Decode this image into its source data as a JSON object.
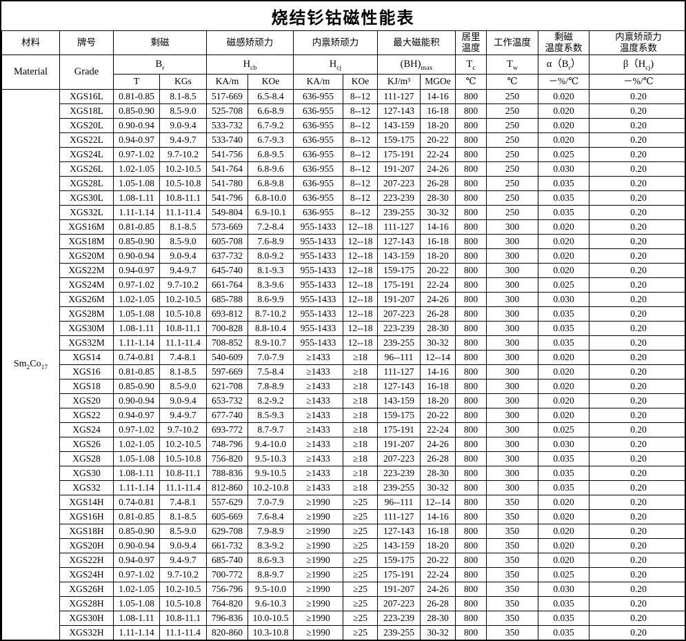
{
  "page": {
    "title": "烧结钐钴磁性能表"
  },
  "header": {
    "material_cn": "材料",
    "material_en": "Material",
    "grade_cn": "牌号",
    "grade_en": "Grade",
    "remanence_cn": "剩磁",
    "coercivity_b_cn": "磁感矫顽力",
    "coercivity_i_cn": "内禀矫顽力",
    "energy_product_cn": "最大磁能积",
    "curie_cn_line1": "居里",
    "curie_cn_line2": "温度",
    "working_cn": "工作温度",
    "alpha_cn_line1": "剩磁",
    "alpha_cn_line2": "温度系数",
    "beta_cn_line1": "内禀矫顽力",
    "beta_cn_line2": "温度系数",
    "sym": {
      "br": {
        "base": "B",
        "sub": "r"
      },
      "hcb": {
        "base": "H",
        "sub": "cb"
      },
      "hcj": {
        "base": "H",
        "sub": "cj"
      },
      "bhmax": {
        "base": "(BH)",
        "sub": "max"
      },
      "tc": {
        "base": "T",
        "sub": "c"
      },
      "tw": {
        "base": "T",
        "sub": "w"
      },
      "alpha": {
        "pre": "α（B",
        "sub": "r",
        "post": "）"
      },
      "beta": {
        "pre": "β（H",
        "sub": "cj",
        "post": ")"
      }
    },
    "units": {
      "t": "T",
      "kgs": "KGs",
      "kam": "KA/m",
      "koe": "KOe",
      "kjm3": "KJ/m³",
      "mgoe": "MGOe",
      "celsius": "℃",
      "pct_per_c": "－%/℃"
    }
  },
  "material": {
    "p0": "Sm",
    "s0": "2",
    "p1": "Co",
    "s1": "17"
  },
  "columns": [
    "grade",
    "br_t",
    "br_kgs",
    "hcb_kam",
    "hcb_koe",
    "hcj_kam",
    "hcj_koe",
    "bh_kjm3",
    "bh_mgoe",
    "tc",
    "tw",
    "alpha",
    "beta"
  ],
  "rows": [
    [
      "XGS16L",
      "0.81-0.85",
      "8.1-8.5",
      "517-669",
      "6.5-8.4",
      "636-955",
      "8--12",
      "111-127",
      "14-16",
      "800",
      "250",
      "0.020",
      "0.20"
    ],
    [
      "XGS18L",
      "0.85-0.90",
      "8.5-9.0",
      "525-708",
      "6.6-8.9",
      "636-955",
      "8--12",
      "127-143",
      "16-18",
      "800",
      "250",
      "0.020",
      "0.20"
    ],
    [
      "XGS20L",
      "0.90-0.94",
      "9.0-9.4",
      "533-732",
      "6.7-9.2",
      "636-955",
      "8--12",
      "143-159",
      "18-20",
      "800",
      "250",
      "0.020",
      "0.20"
    ],
    [
      "XGS22L",
      "0.94-0.97",
      "9.4-9.7",
      "533-740",
      "6.7-9.3",
      "636-955",
      "8--12",
      "159-175",
      "20-22",
      "800",
      "250",
      "0.020",
      "0.20"
    ],
    [
      "XGS24L",
      "0.97-1.02",
      "9.7-10.2",
      "541-756",
      "6.8-9.5",
      "636-955",
      "8--12",
      "175-191",
      "22-24",
      "800",
      "250",
      "0.025",
      "0.20"
    ],
    [
      "XGS26L",
      "1.02-1.05",
      "10.2-10.5",
      "541-764",
      "6.8-9.6",
      "636-955",
      "8--12",
      "191-207",
      "24-26",
      "800",
      "250",
      "0.030",
      "0.20"
    ],
    [
      "XGS28L",
      "1.05-1.08",
      "10.5-10.8",
      "541-780",
      "6.8-9.8",
      "636-955",
      "8--12",
      "207-223",
      "26-28",
      "800",
      "250",
      "0.035",
      "0.20"
    ],
    [
      "XGS30L",
      "1.08-1.11",
      "10.8-11.1",
      "541-796",
      "6.8-10.0",
      "636-955",
      "8--12",
      "223-239",
      "28-30",
      "800",
      "250",
      "0.035",
      "0.20"
    ],
    [
      "XGS32L",
      "1.11-1.14",
      "11.1-11.4",
      "549-804",
      "6.9-10.1",
      "636-955",
      "8--12",
      "239-255",
      "30-32",
      "800",
      "250",
      "0.035",
      "0.20"
    ],
    [
      "XGS16M",
      "0.81-0.85",
      "8.1-8.5",
      "573-669",
      "7.2-8.4",
      "955-1433",
      "12--18",
      "111-127",
      "14-16",
      "800",
      "300",
      "0.020",
      "0.20"
    ],
    [
      "XGS18M",
      "0.85-0.90",
      "8.5-9.0",
      "605-708",
      "7.6-8.9",
      "955-1433",
      "12--18",
      "127-143",
      "16-18",
      "800",
      "300",
      "0.020",
      "0.20"
    ],
    [
      "XGS20M",
      "0.90-0.94",
      "9.0-9.4",
      "637-732",
      "8.0-9.2",
      "955-1433",
      "12--18",
      "143-159",
      "18-20",
      "800",
      "300",
      "0.020",
      "0.20"
    ],
    [
      "XGS22M",
      "0.94-0.97",
      "9.4-9.7",
      "645-740",
      "8.1-9.3",
      "955-1433",
      "12--18",
      "159-175",
      "20-22",
      "800",
      "300",
      "0.020",
      "0.20"
    ],
    [
      "XGS24M",
      "0.97-1.02",
      "9.7-10.2",
      "661-764",
      "8.3-9.6",
      "955-1433",
      "12--18",
      "175-191",
      "22-24",
      "800",
      "300",
      "0.025",
      "0.20"
    ],
    [
      "XGS26M",
      "1.02-1.05",
      "10.2-10.5",
      "685-788",
      "8.6-9.9",
      "955-1433",
      "12--18",
      "191-207",
      "24-26",
      "800",
      "300",
      "0.030",
      "0.20"
    ],
    [
      "XGS28M",
      "1.05-1.08",
      "10.5-10.8",
      "693-812",
      "8.7-10.2",
      "955-1433",
      "12--18",
      "207-223",
      "26-28",
      "800",
      "300",
      "0.035",
      "0.20"
    ],
    [
      "XGS30M",
      "1.08-1.11",
      "10.8-11.1",
      "700-828",
      "8.8-10.4",
      "955-1433",
      "12--18",
      "223-239",
      "28-30",
      "800",
      "300",
      "0.035",
      "0.20"
    ],
    [
      "XGS32M",
      "1.11-1.14",
      "11.1-11.4",
      "708-852",
      "8.9-10.7",
      "955-1433",
      "12--18",
      "239-255",
      "30-32",
      "800",
      "300",
      "0.035",
      "0.20"
    ],
    [
      "XGS14",
      "0.74-0.81",
      "7.4-8.1",
      "540-609",
      "7.0-7.9",
      "≥1433",
      "≥18",
      "96--111",
      "12--14",
      "800",
      "300",
      "0.020",
      "0.20"
    ],
    [
      "XGS16",
      "0.81-0.85",
      "8.1-8.5",
      "597-669",
      "7.5-8.4",
      "≥1433",
      "≥18",
      "111-127",
      "14-16",
      "800",
      "300",
      "0.020",
      "0.20"
    ],
    [
      "XGS18",
      "0.85-0.90",
      "8.5-9.0",
      "621-708",
      "7.8-8.9",
      "≥1433",
      "≥18",
      "127-143",
      "16-18",
      "800",
      "300",
      "0.020",
      "0.20"
    ],
    [
      "XGS20",
      "0.90-0.94",
      "9.0-9.4",
      "653-732",
      "8.2-9.2",
      "≥1433",
      "≥18",
      "143-159",
      "18-20",
      "800",
      "300",
      "0.020",
      "0.20"
    ],
    [
      "XGS22",
      "0.94-0.97",
      "9.4-9.7",
      "677-740",
      "8.5-9.3",
      "≥1433",
      "≥18",
      "159-175",
      "20-22",
      "800",
      "300",
      "0.020",
      "0.20"
    ],
    [
      "XGS24",
      "0.97-1.02",
      "9.7-10.2",
      "693-772",
      "8.7-9.7",
      "≥1433",
      "≥18",
      "175-191",
      "22-24",
      "800",
      "300",
      "0.025",
      "0.20"
    ],
    [
      "XGS26",
      "1.02-1.05",
      "10.2-10.5",
      "748-796",
      "9.4-10.0",
      "≥1433",
      "≥18",
      "191-207",
      "24-26",
      "800",
      "300",
      "0.030",
      "0.20"
    ],
    [
      "XGS28",
      "1.05-1.08",
      "10.5-10.8",
      "756-820",
      "9.5-10.3",
      "≥1433",
      "≥18",
      "207-223",
      "26-28",
      "800",
      "300",
      "0.035",
      "0.20"
    ],
    [
      "XGS30",
      "1.08-1.11",
      "10.8-11.1",
      "788-836",
      "9.9-10.5",
      "≥1433",
      "≥18",
      "223-239",
      "28-30",
      "800",
      "300",
      "0.035",
      "0.20"
    ],
    [
      "XGS32",
      "1.11-1.14",
      "11.1-11.4",
      "812-860",
      "10.2-10.8",
      "≥1433",
      "≥18",
      "239-255",
      "30-32",
      "800",
      "300",
      "0.035",
      "0.20"
    ],
    [
      "XGS14H",
      "0.74-0.81",
      "7.4-8.1",
      "557-629",
      "7.0-7.9",
      "≥1990",
      "≥25",
      "96--111",
      "12--14",
      "800",
      "350",
      "0.020",
      "0.20"
    ],
    [
      "XGS16H",
      "0.81-0.85",
      "8.1-8.5",
      "605-669",
      "7.6-8.4",
      "≥1990",
      "≥25",
      "111-127",
      "14-16",
      "800",
      "350",
      "0.020",
      "0.20"
    ],
    [
      "XGS18H",
      "0.85-0.90",
      "8.5-9.0",
      "629-708",
      "7.9-8.9",
      "≥1990",
      "≥25",
      "127-143",
      "16-18",
      "800",
      "350",
      "0.020",
      "0.20"
    ],
    [
      "XGS20H",
      "0.90-0.94",
      "9.0-9.4",
      "661-732",
      "8.3-9.2",
      "≥1990",
      "≥25",
      "143-159",
      "18-20",
      "800",
      "350",
      "0.020",
      "0.20"
    ],
    [
      "XGS22H",
      "0.94-0.97",
      "9.4-9.7",
      "685-740",
      "8.6-9.3",
      "≥1990",
      "≥25",
      "159-175",
      "20-22",
      "800",
      "350",
      "0.020",
      "0.20"
    ],
    [
      "XGS24H",
      "0.97-1.02",
      "9.7-10.2",
      "700-772",
      "8.8-9.7",
      "≥1990",
      "≥25",
      "175-191",
      "22-24",
      "800",
      "350",
      "0.025",
      "0.20"
    ],
    [
      "XGS26H",
      "1.02-1.05",
      "10.2-10.5",
      "756-796",
      "9.5-10.0",
      "≥1990",
      "≥25",
      "191-207",
      "24-26",
      "800",
      "350",
      "0.030",
      "0.20"
    ],
    [
      "XGS28H",
      "1.05-1.08",
      "10.5-10.8",
      "764-820",
      "9.6-10.3",
      "≥1990",
      "≥25",
      "207-223",
      "26-28",
      "800",
      "350",
      "0.035",
      "0.20"
    ],
    [
      "XGS30H",
      "1.08-1.11",
      "10.8-11.1",
      "796-836",
      "10.0-10.5",
      "≥1990",
      "≥25",
      "223-239",
      "28-30",
      "800",
      "350",
      "0.035",
      "0.20"
    ],
    [
      "XGS32H",
      "1.11-1.14",
      "11.1-11.4",
      "820-860",
      "10.3-10.8",
      "≥1990",
      "≥25",
      "239-255",
      "30-32",
      "800",
      "350",
      "0.035",
      "0.20"
    ]
  ]
}
